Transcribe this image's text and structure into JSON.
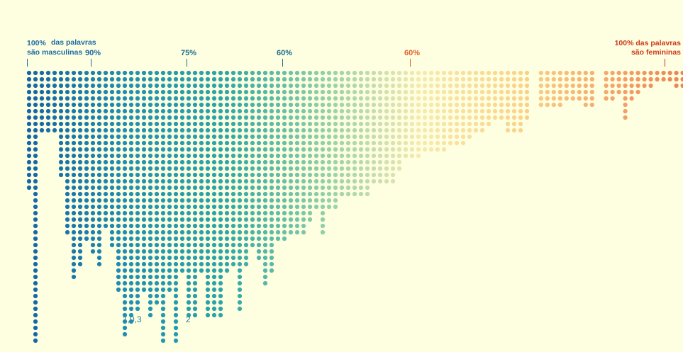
{
  "chart_data": {
    "type": "dot-strip",
    "title": "",
    "xlabel": "",
    "ylabel": "",
    "axis": {
      "left_end": {
        "percent": "100%",
        "line1": "das palavras",
        "line2": "são masculinas",
        "color": "#1a6aa6"
      },
      "right_end": {
        "line1": "100% das palavras",
        "line2": "são femininas",
        "color": "#cc3a1c"
      },
      "ticks": [
        {
          "label": "90%",
          "side": "masculine",
          "pct": 90,
          "color": "#1a6aa6"
        },
        {
          "label": "75%",
          "side": "masculine",
          "pct": 75,
          "color": "#1b6d8c"
        },
        {
          "label": "60%",
          "side": "masculine",
          "pct": 60,
          "color": "#1b6d8c"
        },
        {
          "label": "60%",
          "side": "feminine",
          "pct": 60,
          "color": "#e06230"
        }
      ]
    },
    "columns": {
      "heights": [
        19,
        43,
        10,
        10,
        10,
        17,
        26,
        33,
        31,
        27,
        29,
        31,
        25,
        28,
        35,
        42,
        40,
        38,
        35,
        39,
        37,
        43,
        35,
        43,
        32,
        39,
        39,
        32,
        39,
        39,
        39,
        32,
        31,
        38,
        31,
        28,
        30,
        34,
        32,
        27,
        27,
        26,
        26,
        26,
        24,
        22,
        26,
        22,
        22,
        20,
        20,
        20,
        20,
        20,
        18,
        18,
        18,
        18,
        16,
        14,
        14,
        14,
        13,
        13,
        13,
        13,
        12,
        12,
        12,
        11,
        10,
        10,
        9,
        8,
        8,
        10,
        10,
        10,
        8,
        6,
        6,
        6,
        6,
        5,
        5,
        5,
        6,
        6,
        5,
        5,
        4,
        8,
        5,
        4,
        3,
        3,
        2,
        2,
        2,
        3,
        3,
        3,
        3,
        1,
        1,
        1,
        2,
        2,
        2,
        3,
        2,
        2,
        2,
        2,
        3,
        1,
        2,
        2,
        1,
        1
      ],
      "gaps_after_index": [
        78,
        87,
        114
      ],
      "color_stops": [
        "#1565a8",
        "#1f8fb4",
        "#2ba6a8",
        "#8ecfa8",
        "#f7eab0",
        "#f9d48a",
        "#f4a36a",
        "#e8744a",
        "#d94a30"
      ]
    },
    "annotations": [
      {
        "text": "1,0,3",
        "column": 16,
        "row": 39
      },
      {
        "text": "2",
        "column": 25,
        "row": 39
      }
    ]
  }
}
